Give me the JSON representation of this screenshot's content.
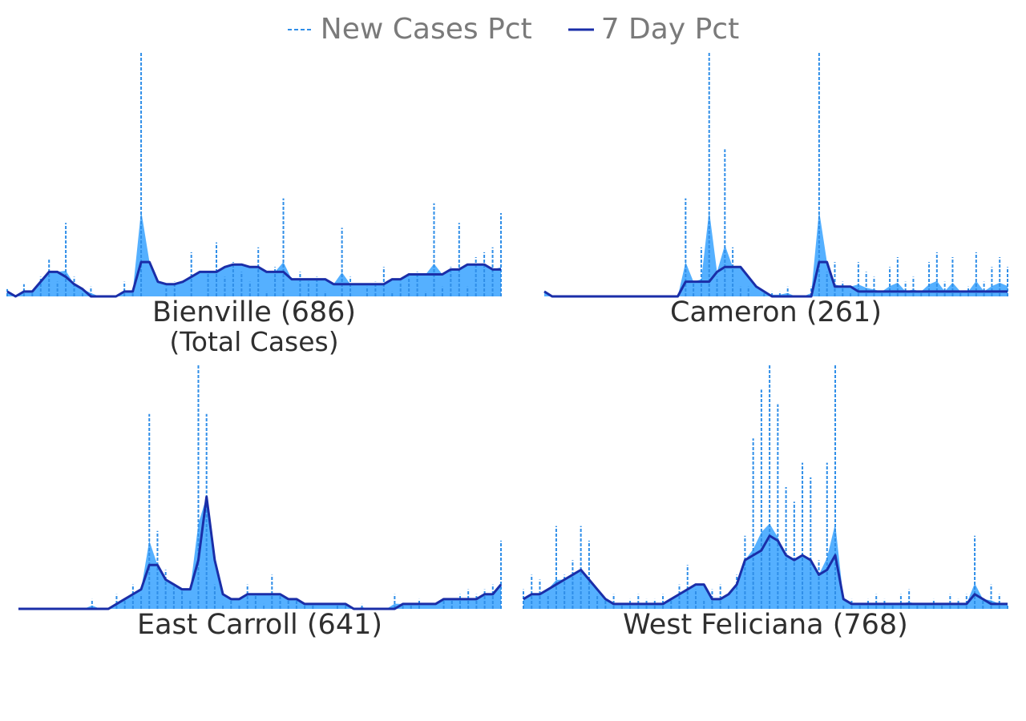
{
  "legend": [
    {
      "label": "New Cases Pct",
      "color": "#2f8ee8",
      "style": "dashed"
    },
    {
      "label": "7 Day Pct",
      "color": "#1a2ea8",
      "style": "solid"
    }
  ],
  "colors": {
    "area": "#55b0ff",
    "daily": "#2f8ee8",
    "avg": "#1a2ea8"
  },
  "chart_data": [
    {
      "type": "area",
      "title": "Bienville (686)",
      "subtitle": "(Total Cases)",
      "x": [
        0,
        1,
        2,
        3,
        4,
        5,
        6,
        7,
        8,
        9,
        10,
        11,
        12,
        13,
        14,
        15,
        16,
        17,
        18,
        19,
        20,
        21,
        22,
        23,
        24,
        25,
        26,
        27,
        28,
        29,
        30,
        31,
        32,
        33,
        34,
        35,
        36,
        37,
        38,
        39,
        40,
        41,
        42,
        43,
        44,
        45,
        46,
        47,
        48,
        49,
        50,
        51,
        52,
        53,
        54,
        55,
        56,
        57,
        58,
        59
      ],
      "series": [
        {
          "name": "New Cases Pct",
          "values": [
            3,
            0,
            5,
            2,
            8,
            15,
            6,
            30,
            8,
            2,
            4,
            0,
            0,
            0,
            6,
            2,
            100,
            0,
            0,
            4,
            6,
            0,
            18,
            0,
            10,
            22,
            8,
            14,
            10,
            6,
            20,
            2,
            12,
            40,
            0,
            10,
            6,
            8,
            2,
            0,
            28,
            8,
            0,
            4,
            6,
            12,
            2,
            6,
            8,
            10,
            2,
            38,
            4,
            12,
            30,
            4,
            16,
            18,
            20,
            34
          ]
        },
        {
          "name": "7 Day Pct",
          "values": [
            2,
            0,
            2,
            2,
            6,
            10,
            10,
            8,
            5,
            3,
            0,
            0,
            0,
            0,
            2,
            2,
            14,
            14,
            6,
            5,
            5,
            6,
            8,
            10,
            10,
            10,
            12,
            13,
            13,
            12,
            12,
            10,
            10,
            10,
            7,
            7,
            7,
            7,
            7,
            5,
            5,
            5,
            5,
            5,
            5,
            5,
            7,
            7,
            9,
            9,
            9,
            9,
            9,
            11,
            11,
            13,
            13,
            13,
            11,
            11
          ]
        }
      ]
    },
    {
      "type": "area",
      "title": "Cameron (261)",
      "x": [
        0,
        1,
        2,
        3,
        4,
        5,
        6,
        7,
        8,
        9,
        10,
        11,
        12,
        13,
        14,
        15,
        16,
        17,
        18,
        19,
        20,
        21,
        22,
        23,
        24,
        25,
        26,
        27,
        28,
        29,
        30,
        31,
        32,
        33,
        34,
        35,
        36,
        37,
        38,
        39,
        40,
        41,
        42,
        43,
        44,
        45,
        46,
        47,
        48,
        49,
        50,
        51,
        52,
        53,
        54,
        55,
        56,
        57,
        58,
        59
      ],
      "series": [
        {
          "name": "New Cases Pct",
          "values": [
            0,
            0,
            0,
            0,
            0,
            0,
            0,
            0,
            0,
            0,
            0,
            0,
            0,
            0,
            0,
            0,
            0,
            0,
            40,
            6,
            20,
            100,
            8,
            60,
            20,
            4,
            4,
            0,
            2,
            2,
            2,
            4,
            0,
            0,
            4,
            100,
            10,
            14,
            6,
            2,
            14,
            10,
            8,
            2,
            12,
            16,
            6,
            8,
            2,
            14,
            18,
            6,
            16,
            2,
            4,
            18,
            6,
            12,
            16,
            12
          ]
        },
        {
          "name": "7 Day Pct",
          "values": [
            2,
            0,
            0,
            0,
            0,
            0,
            0,
            0,
            0,
            0,
            0,
            0,
            0,
            0,
            0,
            0,
            0,
            0,
            6,
            6,
            6,
            6,
            10,
            12,
            12,
            12,
            8,
            4,
            2,
            0,
            0,
            0,
            0,
            0,
            0,
            14,
            14,
            4,
            4,
            4,
            2,
            2,
            2,
            2,
            2,
            2,
            2,
            2,
            2,
            2,
            2,
            2,
            2,
            2,
            2,
            2,
            2,
            2,
            2,
            2
          ]
        }
      ]
    },
    {
      "type": "area",
      "title": "East Carroll (641)",
      "x": [
        0,
        1,
        2,
        3,
        4,
        5,
        6,
        7,
        8,
        9,
        10,
        11,
        12,
        13,
        14,
        15,
        16,
        17,
        18,
        19,
        20,
        21,
        22,
        23,
        24,
        25,
        26,
        27,
        28,
        29,
        30,
        31,
        32,
        33,
        34,
        35,
        36,
        37,
        38,
        39,
        40,
        41,
        42,
        43,
        44,
        45,
        46,
        47,
        48,
        49,
        50,
        51,
        52,
        53,
        54,
        55,
        56,
        57,
        58,
        59
      ],
      "series": [
        {
          "name": "New Cases Pct",
          "values": [
            0,
            0,
            0,
            0,
            0,
            0,
            0,
            0,
            0,
            4,
            0,
            0,
            6,
            4,
            10,
            6,
            80,
            32,
            16,
            10,
            8,
            4,
            100,
            80,
            10,
            2,
            4,
            2,
            10,
            6,
            2,
            14,
            6,
            4,
            4,
            2,
            2,
            0,
            0,
            2,
            2,
            0,
            2,
            0,
            0,
            0,
            6,
            2,
            2,
            4,
            0,
            0,
            4,
            4,
            6,
            8,
            6,
            8,
            10,
            28
          ]
        },
        {
          "name": "7 Day Pct",
          "values": [
            0,
            0,
            0,
            0,
            0,
            0,
            0,
            0,
            0,
            0,
            0,
            0,
            2,
            4,
            6,
            8,
            18,
            18,
            12,
            10,
            8,
            8,
            20,
            46,
            20,
            6,
            4,
            4,
            6,
            6,
            6,
            6,
            6,
            4,
            4,
            2,
            2,
            2,
            2,
            2,
            2,
            0,
            0,
            0,
            0,
            0,
            0,
            2,
            2,
            2,
            2,
            2,
            4,
            4,
            4,
            4,
            4,
            6,
            6,
            10
          ]
        }
      ]
    },
    {
      "type": "area",
      "title": "West Feliciana (768)",
      "x": [
        0,
        1,
        2,
        3,
        4,
        5,
        6,
        7,
        8,
        9,
        10,
        11,
        12,
        13,
        14,
        15,
        16,
        17,
        18,
        19,
        20,
        21,
        22,
        23,
        24,
        25,
        26,
        27,
        28,
        29,
        30,
        31,
        32,
        33,
        34,
        35,
        36,
        37,
        38,
        39,
        40,
        41,
        42,
        43,
        44,
        45,
        46,
        47,
        48,
        49,
        50,
        51,
        52,
        53,
        54,
        55,
        56,
        57,
        58,
        59
      ],
      "series": [
        {
          "name": "New Cases Pct",
          "values": [
            8,
            14,
            12,
            6,
            34,
            14,
            20,
            34,
            28,
            6,
            4,
            6,
            2,
            4,
            6,
            4,
            4,
            6,
            4,
            10,
            18,
            8,
            4,
            8,
            10,
            2,
            14,
            30,
            70,
            90,
            100,
            84,
            50,
            44,
            60,
            54,
            20,
            60,
            100,
            2,
            4,
            2,
            4,
            6,
            4,
            2,
            6,
            8,
            2,
            2,
            4,
            2,
            6,
            4,
            6,
            30,
            4,
            10,
            6,
            2
          ]
        },
        {
          "name": "7 Day Pct",
          "values": [
            4,
            6,
            6,
            8,
            10,
            12,
            14,
            16,
            12,
            8,
            4,
            2,
            2,
            2,
            2,
            2,
            2,
            2,
            4,
            6,
            8,
            10,
            10,
            4,
            4,
            6,
            10,
            20,
            22,
            24,
            30,
            28,
            22,
            20,
            22,
            20,
            14,
            16,
            22,
            4,
            2,
            2,
            2,
            2,
            2,
            2,
            2,
            2,
            2,
            2,
            2,
            2,
            2,
            2,
            2,
            6,
            4,
            2,
            2,
            2
          ]
        }
      ]
    }
  ]
}
